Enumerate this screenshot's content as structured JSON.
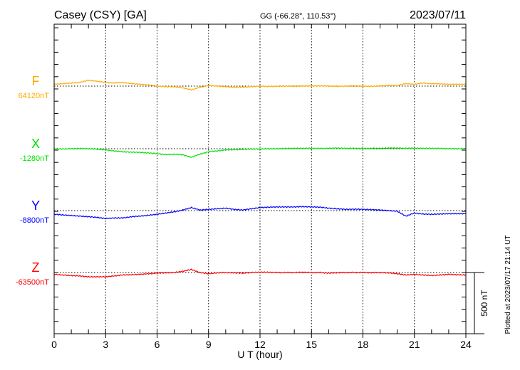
{
  "chart_data": {
    "type": "line",
    "title": "Casey (CSY)  [GA]",
    "coords": "GG (-66.28°, 110.53°)",
    "date": "2023/07/11",
    "xlabel": "U T (hour)",
    "xlim": [
      0,
      24
    ],
    "xticks": [
      "0",
      "3",
      "6",
      "9",
      "12",
      "15",
      "18",
      "21",
      "24"
    ],
    "scale_label": "500 nT",
    "plotted_note": "Plotted at 2023/07/17 21:14 UT",
    "x": [
      0,
      0.5,
      1,
      1.5,
      2,
      2.5,
      3,
      3.5,
      4,
      4.5,
      5,
      5.5,
      6,
      6.5,
      7,
      7.5,
      8,
      8.5,
      9,
      9.5,
      10,
      10.5,
      11,
      11.5,
      12,
      12.5,
      13,
      13.5,
      14,
      14.5,
      15,
      15.5,
      16,
      16.5,
      17,
      17.5,
      18,
      18.5,
      19,
      19.5,
      20,
      20.5,
      21,
      21.5,
      22,
      22.5,
      23,
      23.5,
      24
    ],
    "series": [
      {
        "name": "F",
        "baseline_label": "64120nT",
        "color": "#ffaa00",
        "values": [
          15,
          20,
          25,
          30,
          48,
          40,
          30,
          25,
          30,
          20,
          15,
          10,
          0,
          -5,
          -5,
          -15,
          -30,
          -10,
          5,
          0,
          -5,
          -10,
          -8,
          -5,
          0,
          -3,
          -2,
          0,
          -2,
          0,
          0,
          2,
          0,
          -2,
          0,
          2,
          0,
          -2,
          2,
          5,
          5,
          20,
          15,
          25,
          20,
          18,
          15,
          15,
          15
        ]
      },
      {
        "name": "X",
        "baseline_label": "-1280nT",
        "color": "#00e000",
        "values": [
          0,
          -2,
          0,
          2,
          0,
          -3,
          -10,
          -18,
          -25,
          -28,
          -30,
          -35,
          -40,
          -48,
          -45,
          -50,
          -70,
          -45,
          -25,
          -18,
          -10,
          -8,
          -5,
          -3,
          -2,
          0,
          0,
          2,
          3,
          3,
          3,
          2,
          3,
          5,
          3,
          3,
          2,
          3,
          3,
          5,
          5,
          3,
          5,
          3,
          3,
          2,
          0,
          0,
          0
        ]
      },
      {
        "name": "Y",
        "baseline_label": "-8800nT",
        "color": "#0000ff",
        "values": [
          -30,
          -35,
          -40,
          -45,
          -50,
          -55,
          -65,
          -60,
          -60,
          -50,
          -45,
          -38,
          -30,
          -20,
          -10,
          5,
          25,
          5,
          10,
          15,
          20,
          10,
          5,
          15,
          25,
          28,
          30,
          30,
          30,
          32,
          30,
          28,
          20,
          15,
          10,
          12,
          10,
          8,
          5,
          0,
          -5,
          -45,
          -20,
          -28,
          -30,
          -28,
          -25,
          -25,
          -25
        ]
      },
      {
        "name": "Z",
        "baseline_label": "-63500nT",
        "color": "#ff0000",
        "values": [
          -15,
          -20,
          -25,
          -28,
          -35,
          -35,
          -35,
          -28,
          -20,
          -18,
          -15,
          -10,
          -5,
          -3,
          0,
          10,
          25,
          0,
          -10,
          -3,
          0,
          -3,
          -5,
          0,
          3,
          2,
          0,
          0,
          0,
          2,
          0,
          0,
          -5,
          -2,
          0,
          0,
          0,
          -2,
          0,
          -3,
          -10,
          -20,
          -15,
          -20,
          -25,
          -20,
          -15,
          -18,
          -20
        ]
      }
    ]
  }
}
